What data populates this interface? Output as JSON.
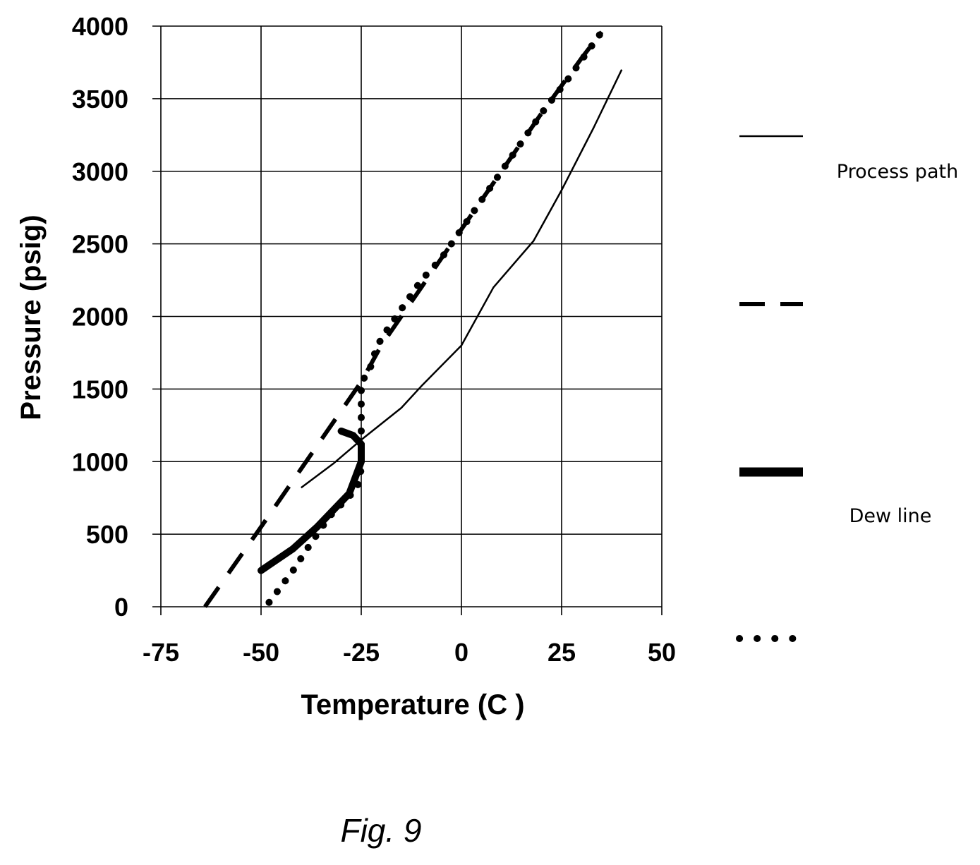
{
  "chart_data": {
    "type": "line",
    "xlabel": "Temperature (C )",
    "ylabel": "Pressure (psig)",
    "xlim": [
      -75,
      50
    ],
    "ylim": [
      0,
      4000
    ],
    "x_ticks": [
      "-75",
      "-50",
      "-25",
      "0",
      "25",
      "50"
    ],
    "y_ticks": [
      "0",
      "500",
      "1000",
      "1500",
      "2000",
      "2500",
      "3000",
      "3500",
      "4000"
    ],
    "grid": "both",
    "legend_position": "right",
    "series": [
      {
        "name": "Process path",
        "style": "thin-solid",
        "points": [
          [
            -40,
            820
          ],
          [
            -32,
            985
          ],
          [
            -25,
            1150
          ],
          [
            -15,
            1370
          ],
          [
            -10,
            1520
          ],
          [
            0,
            1800
          ],
          [
            8,
            2200
          ],
          [
            18,
            2520
          ],
          [
            25,
            2870
          ],
          [
            33,
            3300
          ],
          [
            40,
            3700
          ]
        ]
      },
      {
        "name": "",
        "style": "dashed",
        "points": [
          [
            -64,
            0
          ],
          [
            -50,
            550
          ],
          [
            -40,
            950
          ],
          [
            -25,
            1550
          ],
          [
            -20,
            1800
          ],
          [
            -10,
            2200
          ],
          [
            0,
            2600
          ],
          [
            10,
            3000
          ],
          [
            20,
            3400
          ],
          [
            30,
            3780
          ],
          [
            35,
            3960
          ]
        ]
      },
      {
        "name": "Dew line",
        "style": "thick-solid",
        "points": [
          [
            -50,
            250
          ],
          [
            -42,
            400
          ],
          [
            -36,
            550
          ],
          [
            -28,
            780
          ],
          [
            -25,
            1000
          ],
          [
            -25,
            1120
          ],
          [
            -27,
            1180
          ],
          [
            -30,
            1210
          ]
        ]
      },
      {
        "name": "",
        "style": "dotted",
        "points": [
          [
            -48,
            30
          ],
          [
            -42,
            250
          ],
          [
            -38,
            420
          ],
          [
            -33,
            620
          ],
          [
            -28,
            760
          ],
          [
            -26,
            820
          ],
          [
            -25,
            950
          ],
          [
            -25,
            1200
          ],
          [
            -25,
            1550
          ],
          [
            -23,
            1620
          ],
          [
            -22,
            1720
          ],
          [
            -20,
            1850
          ],
          [
            -15,
            2050
          ],
          [
            -10,
            2250
          ],
          [
            -5,
            2400
          ],
          [
            0,
            2600
          ],
          [
            10,
            3000
          ],
          [
            20,
            3400
          ],
          [
            27,
            3650
          ],
          [
            35,
            3960
          ]
        ]
      }
    ]
  },
  "caption": "Fig. 9"
}
